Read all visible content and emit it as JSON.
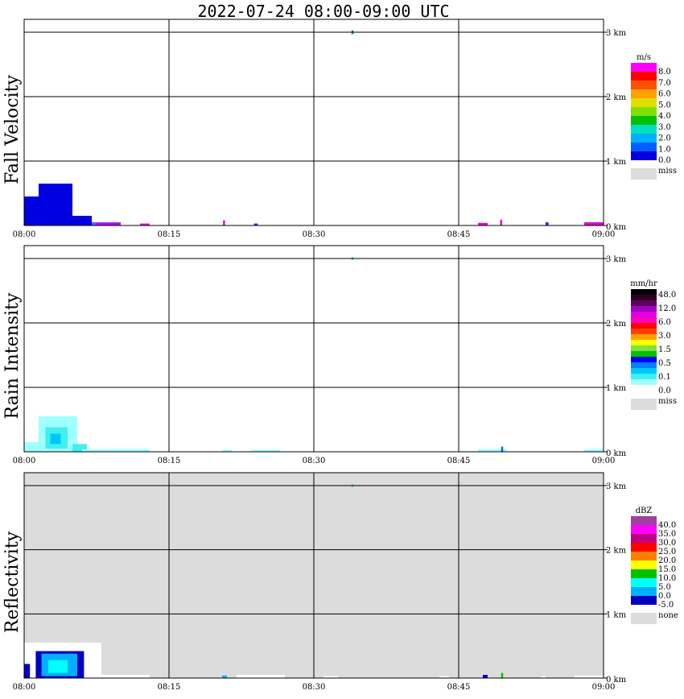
{
  "title": "2022-07-24   08:00-09:00 UTC",
  "chart_data": [
    {
      "type": "heatmap",
      "ylabel": "Fall Velocity",
      "x_ticks": [
        "08:00",
        "08:15",
        "08:30",
        "08:45",
        "09:00"
      ],
      "y_ticks": [
        "1 km",
        "2 km",
        "3 km"
      ],
      "extra_tick": "0 km",
      "background": "white",
      "colorbar": {
        "unit": "m/s",
        "colors": [
          "#0000e0",
          "#0060ff",
          "#00b0ff",
          "#00e0c0",
          "#00c000",
          "#80e000",
          "#e0e000",
          "#ffa000",
          "#ff5000",
          "#ff0000",
          "#ff00ff"
        ],
        "labels": [
          "0.0",
          "1.0",
          "2.0",
          "3.0",
          "4.0",
          "5.0",
          "6.0",
          "7.0",
          "8.0"
        ],
        "miss_label": "miss"
      },
      "cells": [
        {
          "t": [
            0,
            1.5
          ],
          "h": [
            0,
            0.45
          ],
          "color": "#0000e0"
        },
        {
          "t": [
            1.5,
            5.0
          ],
          "h": [
            0,
            0.65
          ],
          "color": "#0000e0"
        },
        {
          "t": [
            5.0,
            7.0
          ],
          "h": [
            0,
            0.15
          ],
          "color": "#0000e0"
        },
        {
          "t": [
            7.0,
            10.0
          ],
          "h": [
            0,
            0.05
          ],
          "color": "#6060ff"
        },
        {
          "t": [
            7.5,
            10.0
          ],
          "h": [
            0,
            0.04
          ],
          "color": "#c000ff"
        },
        {
          "t": [
            12.0,
            13.0
          ],
          "h": [
            0,
            0.03
          ],
          "color": "#e000e0"
        },
        {
          "t": [
            20.6,
            20.8
          ],
          "h": [
            0,
            0.08
          ],
          "color": "#e000e0"
        },
        {
          "t": [
            23.8,
            24.2
          ],
          "h": [
            0,
            0.03
          ],
          "color": "#7000e0"
        },
        {
          "t": [
            33.9,
            34.1
          ],
          "h": [
            2.97,
            3.03
          ],
          "color": "#00a000"
        },
        {
          "t": [
            47.0,
            48.0
          ],
          "h": [
            0,
            0.04
          ],
          "color": "#e000e0"
        },
        {
          "t": [
            49.3,
            49.5
          ],
          "h": [
            0,
            0.09
          ],
          "color": "#e000e0"
        },
        {
          "t": [
            54.0,
            54.3
          ],
          "h": [
            0,
            0.05
          ],
          "color": "#6000e0"
        },
        {
          "t": [
            58.0,
            60.0
          ],
          "h": [
            0,
            0.05
          ],
          "color": "#e000e0"
        }
      ]
    },
    {
      "type": "heatmap",
      "ylabel": "Rain Intensity",
      "x_ticks": [
        "08:00",
        "08:15",
        "08:30",
        "08:45",
        "09:00"
      ],
      "y_ticks": [
        "1 km",
        "2 km",
        "3 km"
      ],
      "extra_tick": "0 km",
      "background": "white",
      "colorbar": {
        "unit": "mm/hr",
        "colors": [
          "#ffffff",
          "#a0ffff",
          "#40f0f0",
          "#00c8ff",
          "#0080ff",
          "#0000ff",
          "#00c000",
          "#80e040",
          "#ffff00",
          "#ffa000",
          "#ff4000",
          "#ff0000",
          "#ff00c0",
          "#e000e0",
          "#a000c0",
          "#600060",
          "#300020",
          "#000000"
        ],
        "labels": [
          "0.0",
          "0.1",
          "0.5",
          "1.5",
          "3.0",
          "6.0",
          "12.0",
          "48.0"
        ],
        "miss_label": "miss"
      },
      "cells": [
        {
          "t": [
            0,
            2.0
          ],
          "h": [
            0,
            0.15
          ],
          "color": "#a0ffff"
        },
        {
          "t": [
            1.5,
            5.5
          ],
          "h": [
            0,
            0.55
          ],
          "color": "#a0ffff"
        },
        {
          "t": [
            2.2,
            4.5
          ],
          "h": [
            0.05,
            0.38
          ],
          "color": "#40f0f0"
        },
        {
          "t": [
            2.7,
            3.8
          ],
          "h": [
            0.12,
            0.28
          ],
          "color": "#00c8ff"
        },
        {
          "t": [
            5.0,
            6.5
          ],
          "h": [
            0,
            0.12
          ],
          "color": "#40f0f0"
        },
        {
          "t": [
            6.0,
            13.0
          ],
          "h": [
            0,
            0.04
          ],
          "color": "#a0ffff"
        },
        {
          "t": [
            20.5,
            21.5
          ],
          "h": [
            0,
            0.03
          ],
          "color": "#a0ffff"
        },
        {
          "t": [
            23.5,
            26.5
          ],
          "h": [
            0,
            0.03
          ],
          "color": "#a0ffff"
        },
        {
          "t": [
            33.9,
            34.1
          ],
          "h": [
            2.98,
            3.02
          ],
          "color": "#40c0ff"
        },
        {
          "t": [
            47.0,
            50.0
          ],
          "h": [
            0,
            0.04
          ],
          "color": "#a0ffff"
        },
        {
          "t": [
            49.4,
            49.6
          ],
          "h": [
            0,
            0.08
          ],
          "color": "#0060ff"
        },
        {
          "t": [
            58.0,
            60.0
          ],
          "h": [
            0,
            0.04
          ],
          "color": "#a0ffff"
        }
      ]
    },
    {
      "type": "heatmap",
      "ylabel": "Reflectivity",
      "x_ticks": [
        "08:00",
        "08:15",
        "08:30",
        "08:45",
        "09:00"
      ],
      "y_ticks": [
        "1 km",
        "2 km",
        "3 km"
      ],
      "extra_tick": "0 km",
      "background": "#dcdcdc",
      "colorbar": {
        "unit": "dBZ",
        "colors": [
          "#0000c0",
          "#00b0ff",
          "#00ffff",
          "#00c000",
          "#ffff00",
          "#ff8000",
          "#ff0000",
          "#c00080",
          "#ff00ff",
          "#a040a0"
        ],
        "labels": [
          "-5.0",
          "0.0",
          "5.0",
          "10.0",
          "15.0",
          "20.0",
          "25.0",
          "30.0",
          "35.0",
          "40.0"
        ],
        "miss_label": "none"
      },
      "cells": [
        {
          "t": [
            0,
            8.0
          ],
          "h": [
            0,
            0.55
          ],
          "color": "#ffffff"
        },
        {
          "t": [
            8.0,
            13.0
          ],
          "h": [
            0,
            0.05
          ],
          "color": "#ffffff"
        },
        {
          "t": [
            0,
            0.6
          ],
          "h": [
            0,
            0.22
          ],
          "color": "#0000c0"
        },
        {
          "t": [
            1.2,
            6.2
          ],
          "h": [
            0,
            0.42
          ],
          "color": "#0000c0"
        },
        {
          "t": [
            1.8,
            5.5
          ],
          "h": [
            0.03,
            0.38
          ],
          "color": "#00b0ff"
        },
        {
          "t": [
            2.5,
            4.5
          ],
          "h": [
            0.08,
            0.28
          ],
          "color": "#00ffff"
        },
        {
          "t": [
            20.5,
            21.0
          ],
          "h": [
            0,
            0.04
          ],
          "color": "#00b0ff"
        },
        {
          "t": [
            22.0,
            27.0
          ],
          "h": [
            0,
            0.05
          ],
          "color": "#ffffff"
        },
        {
          "t": [
            33.9,
            34.1
          ],
          "h": [
            2.98,
            3.02
          ],
          "color": "#40c0ff"
        },
        {
          "t": [
            31.0,
            32.5
          ],
          "h": [
            0,
            0.03
          ],
          "color": "#ffffff"
        },
        {
          "t": [
            43.0,
            44.0
          ],
          "h": [
            0,
            0.03
          ],
          "color": "#ffffff"
        },
        {
          "t": [
            47.5,
            48.0
          ],
          "h": [
            0,
            0.05
          ],
          "color": "#0000c0"
        },
        {
          "t": [
            49.4,
            49.6
          ],
          "h": [
            0,
            0.08
          ],
          "color": "#00c000"
        },
        {
          "t": [
            53.5,
            54.0
          ],
          "h": [
            0,
            0.03
          ],
          "color": "#ffffff"
        },
        {
          "t": [
            57.0,
            60.0
          ],
          "h": [
            0,
            0.04
          ],
          "color": "#ffffff"
        }
      ]
    }
  ]
}
